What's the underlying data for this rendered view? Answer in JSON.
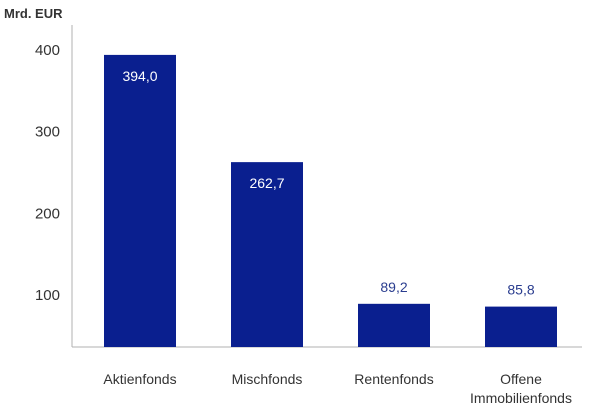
{
  "chart_data": {
    "type": "bar",
    "unit_label": "Mrd. EUR",
    "categories": [
      "Aktienfonds",
      "Mischfonds",
      "Rentenfonds",
      "Offene Immobilienfonds"
    ],
    "category_label_lines": [
      [
        "Aktienfonds"
      ],
      [
        "Mischfonds"
      ],
      [
        "Rentenfonds"
      ],
      [
        "Offene",
        "Immobilienfonds"
      ]
    ],
    "values": [
      394.0,
      262.7,
      89.2,
      85.8
    ],
    "value_labels": [
      "394,0",
      "262,7",
      "89,2",
      "85,8"
    ],
    "y_ticks": [
      100,
      200,
      300,
      400
    ],
    "ylim": [
      40,
      420
    ],
    "grid": false,
    "colors": {
      "bar": "#0a1f8f",
      "label_inside": "#ffffff",
      "label_outside": "#2a3d8f",
      "axis": "#b0b0b0",
      "text": "#333333"
    }
  }
}
